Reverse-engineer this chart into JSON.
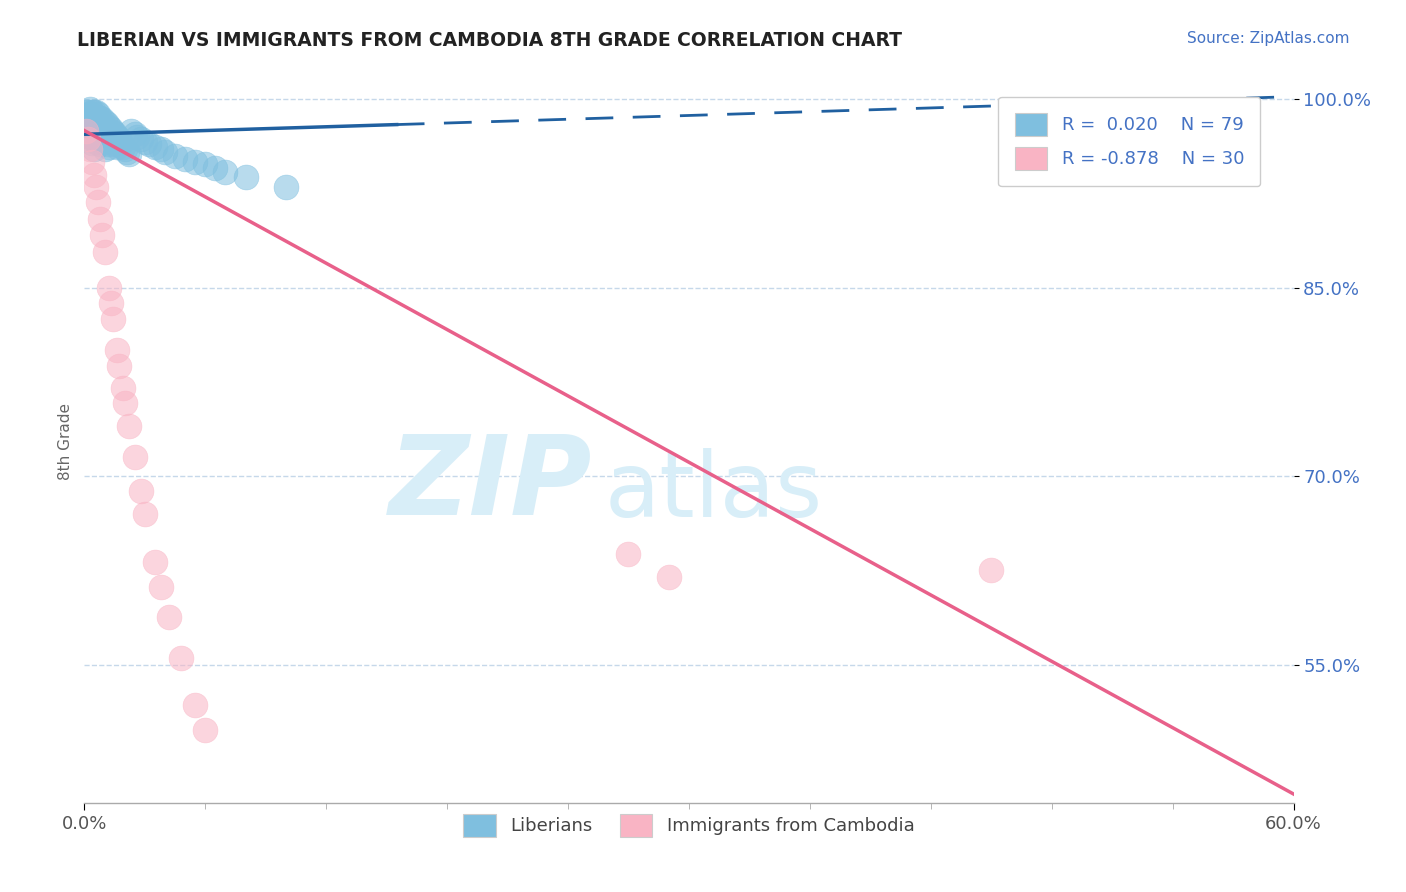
{
  "title": "LIBERIAN VS IMMIGRANTS FROM CAMBODIA 8TH GRADE CORRELATION CHART",
  "source_text": "Source: ZipAtlas.com",
  "ylabel_label": "8th Grade",
  "r_blue": 0.02,
  "n_blue": 79,
  "r_pink": -0.878,
  "n_pink": 30,
  "xlim": [
    0.0,
    0.6
  ],
  "ylim": [
    0.44,
    1.015
  ],
  "yticks": [
    0.55,
    0.7,
    0.85,
    1.0
  ],
  "ytick_labels": [
    "55.0%",
    "70.0%",
    "85.0%",
    "100.0%"
  ],
  "background_color": "#ffffff",
  "blue_color": "#7fbfdf",
  "pink_color": "#f9b4c4",
  "blue_line_color": "#2060a0",
  "pink_line_color": "#e8608a",
  "watermark_color": "#d8eef8",
  "legend_label_blue": "Liberians",
  "legend_label_pink": "Immigrants from Cambodia",
  "blue_line_y_intercept": 0.972,
  "blue_line_slope": 0.05,
  "pink_line_y_intercept": 0.975,
  "pink_line_slope": -0.88,
  "blue_scatter_x": [
    0.001,
    0.001,
    0.002,
    0.002,
    0.002,
    0.002,
    0.003,
    0.003,
    0.003,
    0.003,
    0.003,
    0.004,
    0.004,
    0.004,
    0.004,
    0.004,
    0.005,
    0.005,
    0.005,
    0.005,
    0.005,
    0.005,
    0.006,
    0.006,
    0.006,
    0.006,
    0.006,
    0.007,
    0.007,
    0.007,
    0.007,
    0.008,
    0.008,
    0.008,
    0.008,
    0.009,
    0.009,
    0.009,
    0.01,
    0.01,
    0.01,
    0.01,
    0.011,
    0.011,
    0.011,
    0.012,
    0.012,
    0.012,
    0.013,
    0.013,
    0.014,
    0.014,
    0.015,
    0.015,
    0.016,
    0.016,
    0.017,
    0.018,
    0.019,
    0.02,
    0.021,
    0.022,
    0.023,
    0.025,
    0.026,
    0.028,
    0.03,
    0.032,
    0.035,
    0.038,
    0.04,
    0.045,
    0.05,
    0.055,
    0.06,
    0.065,
    0.07,
    0.08,
    0.1
  ],
  "blue_scatter_y": [
    0.99,
    0.985,
    0.99,
    0.985,
    0.98,
    0.975,
    0.992,
    0.988,
    0.982,
    0.978,
    0.97,
    0.99,
    0.985,
    0.978,
    0.972,
    0.965,
    0.99,
    0.985,
    0.98,
    0.975,
    0.968,
    0.96,
    0.99,
    0.985,
    0.98,
    0.974,
    0.966,
    0.988,
    0.982,
    0.976,
    0.968,
    0.985,
    0.978,
    0.972,
    0.964,
    0.984,
    0.976,
    0.968,
    0.982,
    0.975,
    0.968,
    0.96,
    0.98,
    0.972,
    0.964,
    0.978,
    0.97,
    0.962,
    0.976,
    0.968,
    0.974,
    0.966,
    0.972,
    0.964,
    0.97,
    0.962,
    0.968,
    0.965,
    0.962,
    0.96,
    0.958,
    0.956,
    0.975,
    0.972,
    0.97,
    0.968,
    0.966,
    0.964,
    0.962,
    0.96,
    0.958,
    0.955,
    0.952,
    0.95,
    0.948,
    0.945,
    0.942,
    0.938,
    0.93
  ],
  "pink_scatter_x": [
    0.001,
    0.002,
    0.003,
    0.004,
    0.005,
    0.006,
    0.007,
    0.008,
    0.009,
    0.01,
    0.012,
    0.013,
    0.014,
    0.016,
    0.017,
    0.019,
    0.02,
    0.022,
    0.025,
    0.028,
    0.03,
    0.035,
    0.038,
    0.042,
    0.048,
    0.055,
    0.06,
    0.27,
    0.29,
    0.45
  ],
  "pink_scatter_y": [
    0.975,
    0.968,
    0.96,
    0.95,
    0.94,
    0.93,
    0.918,
    0.905,
    0.892,
    0.878,
    0.85,
    0.838,
    0.825,
    0.8,
    0.788,
    0.77,
    0.758,
    0.74,
    0.715,
    0.688,
    0.67,
    0.632,
    0.612,
    0.588,
    0.555,
    0.518,
    0.498,
    0.638,
    0.62,
    0.625
  ]
}
